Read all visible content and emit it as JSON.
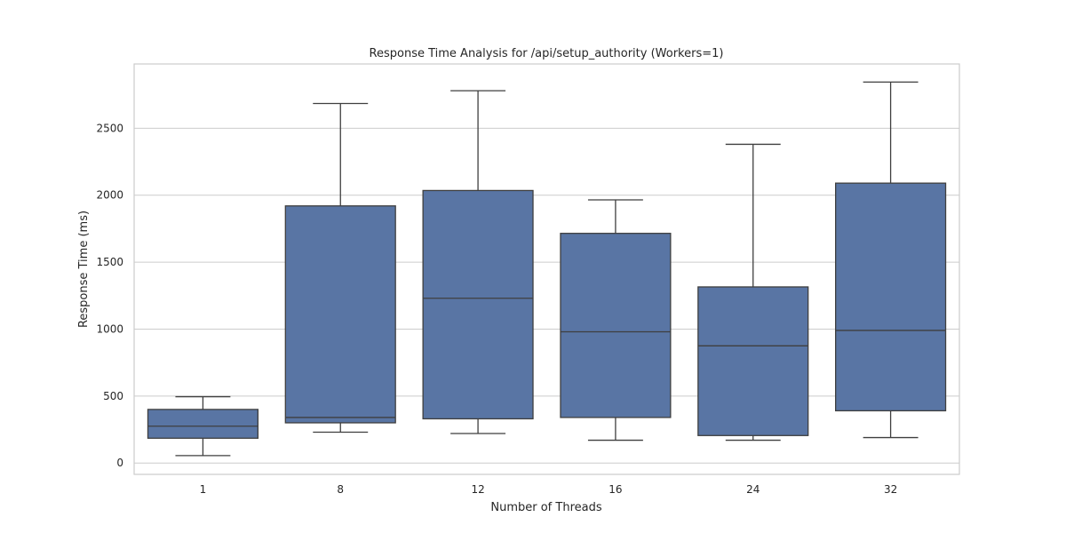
{
  "chart_data": {
    "type": "box",
    "title": "Response Time Analysis for /api/setup_authority (Workers=1)",
    "xlabel": "Number of Threads",
    "ylabel": "Response Time (ms)",
    "categories": [
      "1",
      "8",
      "12",
      "16",
      "24",
      "32"
    ],
    "boxes": [
      {
        "category": "1",
        "whisker_low": 55,
        "q1": 185,
        "median": 275,
        "q3": 400,
        "whisker_high": 495
      },
      {
        "category": "8",
        "whisker_low": 230,
        "q1": 300,
        "median": 340,
        "q3": 1920,
        "whisker_high": 2685
      },
      {
        "category": "12",
        "whisker_low": 220,
        "q1": 330,
        "median": 1230,
        "q3": 2035,
        "whisker_high": 2780
      },
      {
        "category": "16",
        "whisker_low": 170,
        "q1": 340,
        "median": 980,
        "q3": 1715,
        "whisker_high": 1965
      },
      {
        "category": "24",
        "whisker_low": 170,
        "q1": 205,
        "median": 875,
        "q3": 1315,
        "whisker_high": 2380
      },
      {
        "category": "32",
        "whisker_low": 190,
        "q1": 390,
        "median": 990,
        "q3": 2090,
        "whisker_high": 2845
      }
    ],
    "ylim": [
      -85,
      2980
    ],
    "yticks": [
      0,
      500,
      1000,
      1500,
      2000,
      2500
    ],
    "grid": true,
    "legend": "none",
    "colors": {
      "box_fill": "#5975a4",
      "line": "#3f3f3f",
      "grid": "#cccccc",
      "frame": "#cccccc"
    }
  }
}
